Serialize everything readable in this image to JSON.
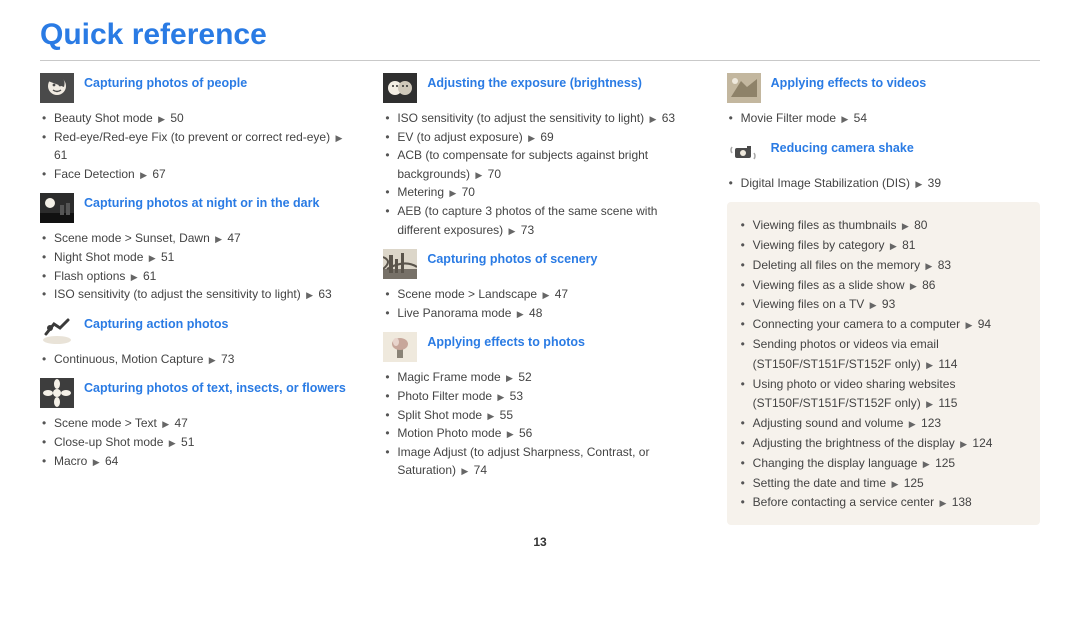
{
  "page": {
    "title": "Quick reference",
    "page_number": "13"
  },
  "columns": [
    {
      "sections": [
        {
          "icon": "face",
          "title": "Capturing photos of people",
          "items": [
            {
              "text": "Beauty Shot mode",
              "page": "50"
            },
            {
              "text": "Red-eye/Red-eye Fix (to prevent or correct red-eye)",
              "page": "61"
            },
            {
              "text": "Face Detection",
              "page": "67"
            }
          ]
        },
        {
          "icon": "night",
          "title": "Capturing photos at night or in the dark",
          "items": [
            {
              "text": "Scene mode > Sunset, Dawn",
              "page": "47"
            },
            {
              "text": "Night Shot mode",
              "page": "51"
            },
            {
              "text": "Flash options",
              "page": "61"
            },
            {
              "text": "ISO sensitivity (to adjust the sensitivity to light)",
              "page": "63"
            }
          ]
        },
        {
          "icon": "action",
          "title": "Capturing action photos",
          "items": [
            {
              "text": "Continuous, Motion Capture",
              "page": "73"
            }
          ]
        },
        {
          "icon": "flower",
          "title": "Capturing photos of text, insects, or flowers",
          "items": [
            {
              "text": "Scene mode > Text",
              "page": "47"
            },
            {
              "text": "Close-up Shot mode",
              "page": "51"
            },
            {
              "text": "Macro",
              "page": "64"
            }
          ]
        }
      ]
    },
    {
      "sections": [
        {
          "icon": "exposure",
          "title": "Adjusting the exposure (brightness)",
          "items": [
            {
              "text": "ISO sensitivity (to adjust the sensitivity to light)",
              "page": "63"
            },
            {
              "text": "EV (to adjust exposure)",
              "page": "69"
            },
            {
              "text": "ACB (to compensate for subjects against bright backgrounds)",
              "page": "70"
            },
            {
              "text": "Metering",
              "page": "70"
            },
            {
              "text": "AEB (to capture 3 photos of the same scene with different exposures)",
              "page": "73"
            }
          ]
        },
        {
          "icon": "scenery",
          "title": "Capturing photos of scenery",
          "items": [
            {
              "text": "Scene mode > Landscape",
              "page": "47"
            },
            {
              "text": "Live Panorama mode",
              "page": "48"
            }
          ]
        },
        {
          "icon": "photo-fx",
          "title": "Applying effects to photos",
          "items": [
            {
              "text": "Magic Frame mode",
              "page": "52"
            },
            {
              "text": "Photo Filter mode",
              "page": "53"
            },
            {
              "text": "Split Shot mode",
              "page": "55"
            },
            {
              "text": "Motion Photo mode",
              "page": "56"
            },
            {
              "text": "Image Adjust (to adjust Sharpness, Contrast, or Saturation)",
              "page": "74"
            }
          ]
        }
      ]
    },
    {
      "sections": [
        {
          "icon": "video-fx",
          "title": "Applying effects to videos",
          "items": [
            {
              "text": "Movie Filter mode",
              "page": "54"
            }
          ]
        },
        {
          "icon": "shake",
          "title": "Reducing camera shake",
          "items": [
            {
              "text": "Digital Image Stabilization (DIS)",
              "page": "39"
            }
          ]
        }
      ],
      "extras": [
        {
          "text": "Viewing files as thumbnails",
          "page": "80"
        },
        {
          "text": "Viewing files by category",
          "page": "81"
        },
        {
          "text": "Deleting all files on the memory",
          "page": "83"
        },
        {
          "text": "Viewing files as a slide show",
          "page": "86"
        },
        {
          "text": "Viewing files on a TV",
          "page": "93"
        },
        {
          "text": "Connecting your camera to a computer",
          "page": "94"
        },
        {
          "text": "Sending photos or videos via email (ST150F/ST151F/ST152F only)",
          "page": "114"
        },
        {
          "text": "Using photo or video sharing websites (ST150F/ST151F/ST152F only)",
          "page": "115"
        },
        {
          "text": "Adjusting sound and volume",
          "page": "123"
        },
        {
          "text": "Adjusting the brightness of the display",
          "page": "124"
        },
        {
          "text": "Changing the display language",
          "page": "125"
        },
        {
          "text": "Setting the date and time",
          "page": "125"
        },
        {
          "text": "Before contacting a service center",
          "page": "138"
        }
      ]
    }
  ]
}
